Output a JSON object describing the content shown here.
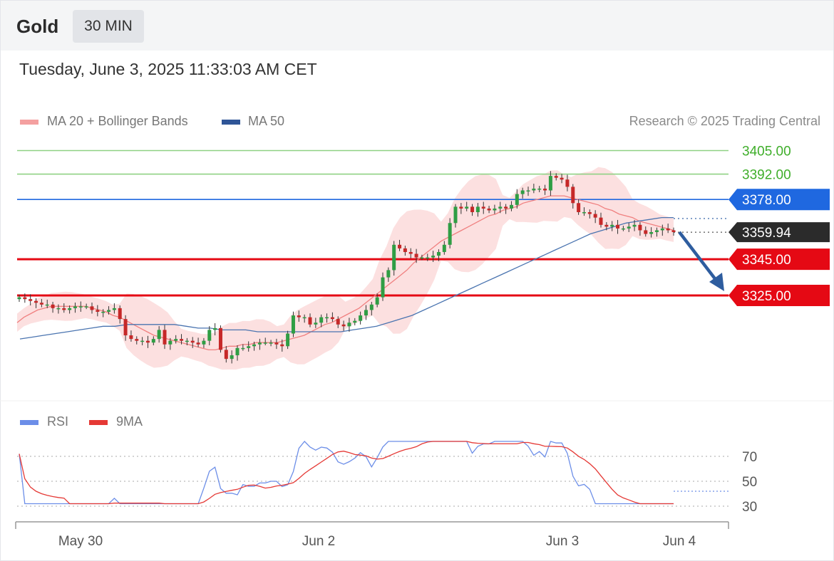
{
  "header": {
    "instrument": "Gold",
    "timeframe": "30 MIN"
  },
  "timestamp": "Tuesday, June 3, 2025 11:33:03 AM CET",
  "legend": {
    "ma20_label": "MA 20 + Bollinger Bands",
    "ma50_label": "MA 50",
    "rsi_label": "RSI",
    "rsi_ma_label": "9MA"
  },
  "credit": "Research © 2025 Trading Central",
  "colors": {
    "resistance": "#8fd184",
    "resistance_text": "#3fae2a",
    "pivot": "#1f68e0",
    "support": "#e50914",
    "last_price": "#2b2b2b",
    "candle_up": "#2f9e44",
    "candle_down": "#c62828",
    "ma20": "#f08080",
    "ma50": "#4a74b0",
    "bands": "#fcdada",
    "rsi": "#6c8ee8",
    "rsi_ma": "#e53935",
    "arrow": "#2e5d9f"
  },
  "chart_data": {
    "type": "candlestick",
    "title": "Gold",
    "x_tick_labels": [
      "May 30",
      "Jun 2",
      "Jun 3",
      "Jun 4"
    ],
    "price_range": [
      3290,
      3415
    ],
    "levels": [
      {
        "label": "3405.00",
        "value": 3405.0,
        "kind": "resistance"
      },
      {
        "label": "3392.00",
        "value": 3392.0,
        "kind": "resistance"
      },
      {
        "label": "3378.00",
        "value": 3378.0,
        "kind": "pivot"
      },
      {
        "label": "3359.94",
        "value": 3359.94,
        "kind": "last"
      },
      {
        "label": "3345.00",
        "value": 3345.0,
        "kind": "support"
      },
      {
        "label": "3325.00",
        "value": 3325.0,
        "kind": "support"
      }
    ],
    "close": [
      3324,
      3323,
      3322,
      3321,
      3320,
      3320,
      3318,
      3318,
      3317,
      3318,
      3319,
      3319,
      3319,
      3317,
      3316,
      3316,
      3317,
      3318,
      3312,
      3303,
      3301,
      3300,
      3300,
      3299,
      3301,
      3306,
      3298,
      3300,
      3301,
      3300,
      3300,
      3299,
      3298,
      3300,
      3306,
      3307,
      3295,
      3290,
      3292,
      3296,
      3296,
      3297,
      3298,
      3299,
      3299,
      3299,
      3298,
      3297,
      3304,
      3314,
      3313,
      3313,
      3309,
      3310,
      3313,
      3313,
      3312,
      3309,
      3308,
      3310,
      3311,
      3314,
      3317,
      3320,
      3324,
      3335,
      3339,
      3353,
      3351,
      3349,
      3348,
      3346,
      3346,
      3346,
      3347,
      3349,
      3353,
      3365,
      3374,
      3373,
      3374,
      3371,
      3374,
      3373,
      3372,
      3373,
      3374,
      3373,
      3375,
      3381,
      3383,
      3383,
      3384,
      3384,
      3383,
      3391,
      3390,
      3389,
      3385,
      3376,
      3371,
      3371,
      3370,
      3368,
      3364,
      3363,
      3364,
      3362,
      3362,
      3363,
      3364,
      3361,
      3359,
      3360,
      3361,
      3362,
      3361,
      3360
    ],
    "ma20": [
      3310,
      3313,
      3315,
      3317,
      3318,
      3319,
      3319,
      3319,
      3319,
      3319,
      3319,
      3318,
      3317,
      3316,
      3314,
      3313,
      3311,
      3309,
      3307,
      3305,
      3303,
      3302,
      3301,
      3300,
      3299,
      3298,
      3297,
      3296,
      3295,
      3295,
      3296,
      3297,
      3297,
      3298,
      3298,
      3299,
      3299,
      3299,
      3299,
      3300,
      3301,
      3302,
      3303,
      3305,
      3307,
      3309,
      3310,
      3312,
      3314,
      3316,
      3318,
      3321,
      3324,
      3327,
      3330,
      3333,
      3336,
      3339,
      3343,
      3346,
      3349,
      3352,
      3355,
      3357,
      3359,
      3361,
      3363,
      3365,
      3367,
      3369,
      3370,
      3372,
      3373,
      3374,
      3376,
      3377,
      3378,
      3379,
      3380,
      3380,
      3380,
      3379,
      3378,
      3377,
      3376,
      3375,
      3373,
      3372,
      3370,
      3369,
      3368,
      3366,
      3365,
      3364,
      3363,
      3362,
      3361
    ],
    "ma50": [
      3301,
      3302,
      3303,
      3304,
      3305,
      3306,
      3307,
      3308,
      3308,
      3309,
      3309,
      3309,
      3309,
      3309,
      3308,
      3307,
      3307,
      3306,
      3306,
      3306,
      3305,
      3305,
      3305,
      3305,
      3305,
      3305,
      3305,
      3305,
      3306,
      3307,
      3308,
      3310,
      3312,
      3314,
      3317,
      3320,
      3323,
      3326,
      3329,
      3332,
      3335,
      3338,
      3341,
      3344,
      3347,
      3350,
      3353,
      3356,
      3359,
      3361,
      3363,
      3365,
      3366,
      3367,
      3368,
      3368
    ],
    "rsi": {
      "levels": [
        70,
        50,
        30
      ],
      "range": [
        20,
        85
      ],
      "last": 42
    }
  }
}
